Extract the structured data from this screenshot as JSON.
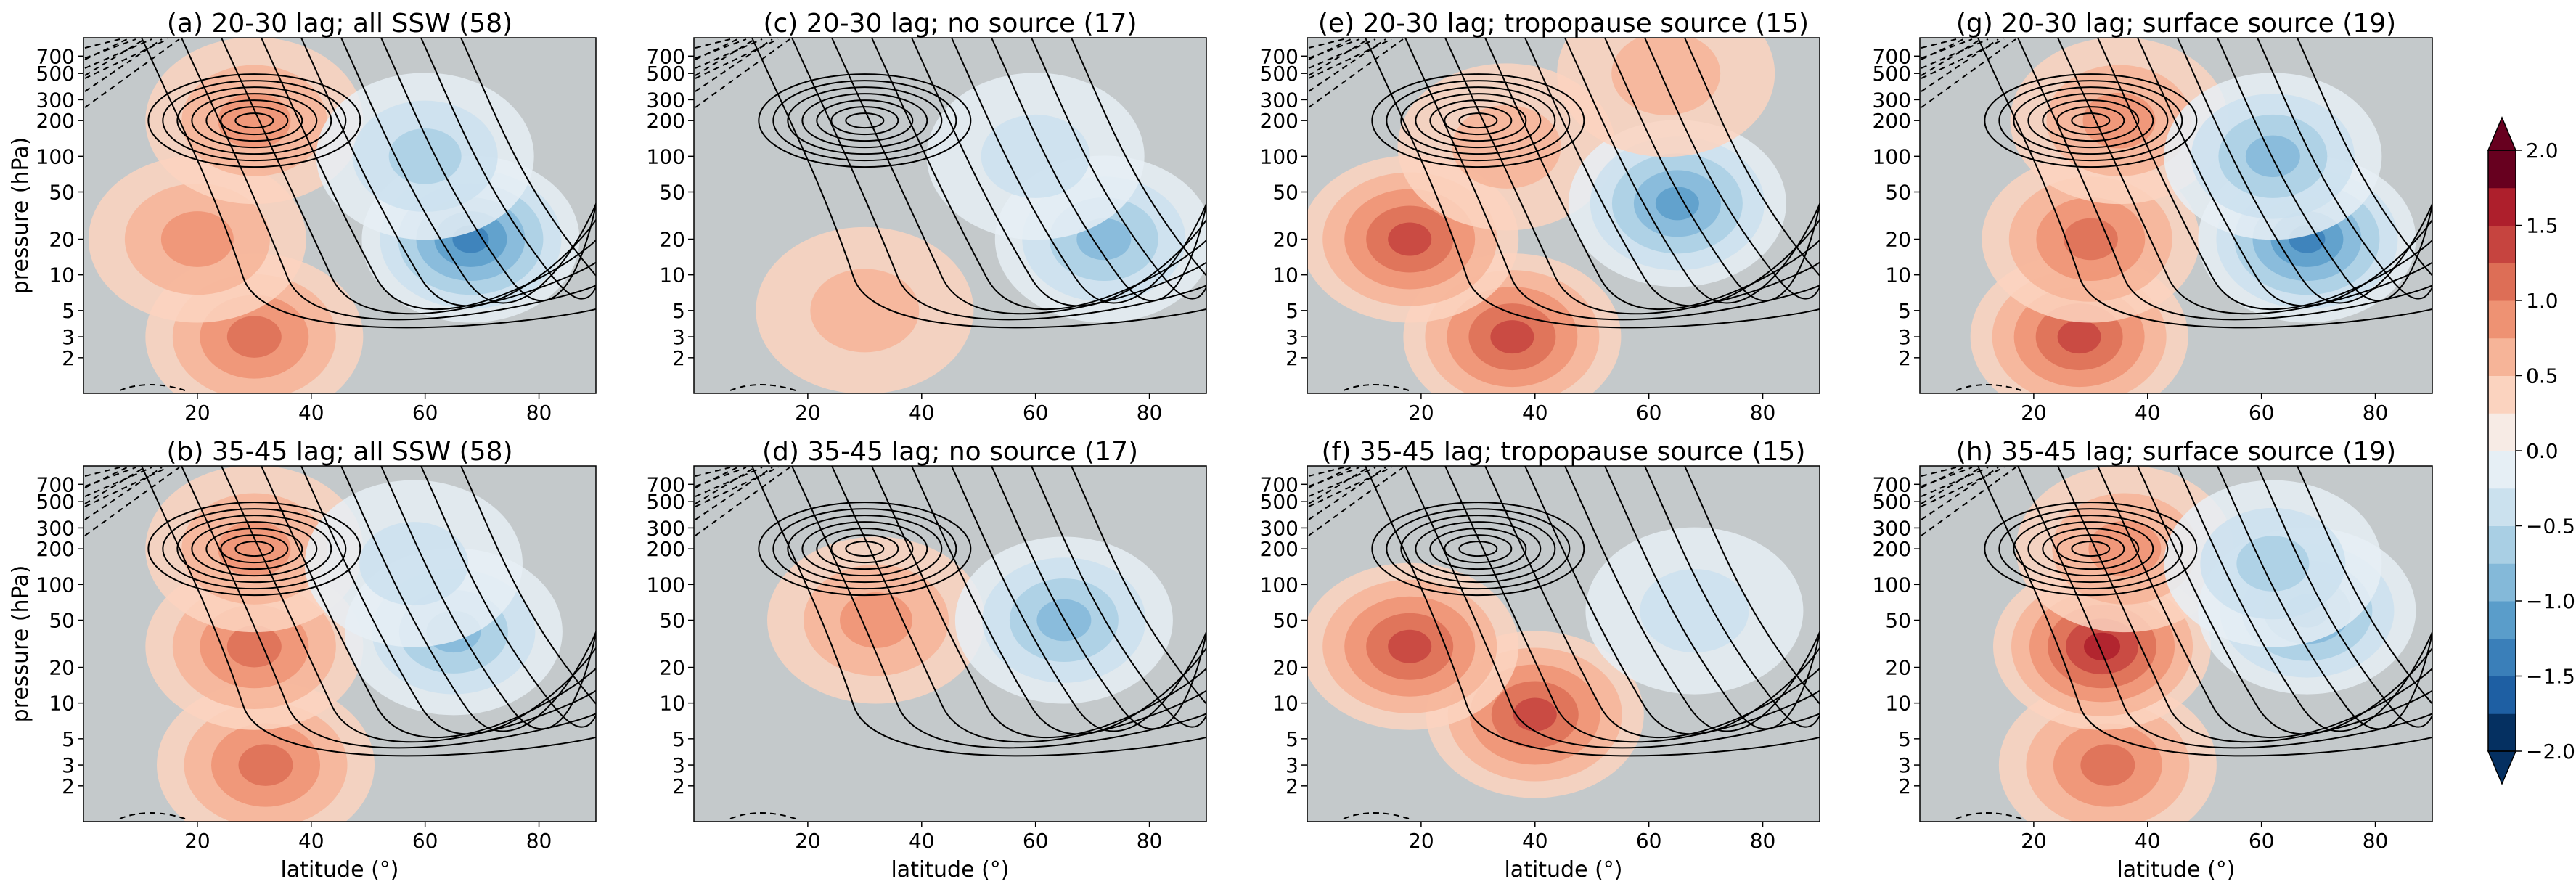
{
  "figure": {
    "ylabel_left": "pressure (hPa)",
    "xlabel_bottom": "latitude (°)"
  },
  "chart_data": [
    {
      "type": "heatmap",
      "id": "a",
      "title": "(a) 20-30 lag; all SSW (58)",
      "xlim": [
        0,
        90
      ],
      "ylim": [
        1000,
        1
      ],
      "xticks": [
        "20",
        "40",
        "60",
        "80"
      ],
      "yticks": [
        "2",
        "3",
        "5",
        "10",
        "20",
        "50",
        "100",
        "200",
        "300",
        "500",
        "700"
      ],
      "xlabel": "",
      "ylabel": "pressure (hPa)",
      "features": [
        {
          "lat": 30,
          "p": 3,
          "value": 1.0
        },
        {
          "lat": 20,
          "p": 20,
          "value": 0.8
        },
        {
          "lat": 30,
          "p": 200,
          "value": 0.7
        },
        {
          "lat": 68,
          "p": 20,
          "value": -1.4
        },
        {
          "lat": 60,
          "p": 100,
          "value": -0.7
        }
      ]
    },
    {
      "type": "heatmap",
      "id": "c",
      "title": "(c) 20-30 lag; no source (17)",
      "xlim": [
        0,
        90
      ],
      "ylim": [
        1000,
        1
      ],
      "xticks": [
        "20",
        "40",
        "60",
        "80"
      ],
      "yticks": [
        "2",
        "3",
        "5",
        "10",
        "20",
        "50",
        "100",
        "200",
        "300",
        "500",
        "700"
      ],
      "xlabel": "",
      "ylabel": "",
      "features": [
        {
          "lat": 30,
          "p": 5,
          "value": 0.4
        },
        {
          "lat": 72,
          "p": 20,
          "value": -1.1
        },
        {
          "lat": 60,
          "p": 100,
          "value": -0.4
        }
      ]
    },
    {
      "type": "heatmap",
      "id": "e",
      "title": "(e) 20-30 lag; tropopause source (15)",
      "xlim": [
        0,
        90
      ],
      "ylim": [
        1000,
        1
      ],
      "xticks": [
        "20",
        "40",
        "60",
        "80"
      ],
      "yticks": [
        "2",
        "3",
        "5",
        "10",
        "20",
        "50",
        "100",
        "200",
        "300",
        "500",
        "700"
      ],
      "xlabel": "",
      "ylabel": "",
      "features": [
        {
          "lat": 36,
          "p": 3,
          "value": 1.2
        },
        {
          "lat": 18,
          "p": 20,
          "value": 1.3
        },
        {
          "lat": 35,
          "p": 120,
          "value": 0.6
        },
        {
          "lat": 65,
          "p": 40,
          "value": -1.2
        },
        {
          "lat": 63,
          "p": 500,
          "value": 0.6
        }
      ]
    },
    {
      "type": "heatmap",
      "id": "g",
      "title": "(g) 20-30 lag; surface source (19)",
      "xlim": [
        0,
        90
      ],
      "ylim": [
        1000,
        1
      ],
      "xticks": [
        "20",
        "40",
        "60",
        "80"
      ],
      "yticks": [
        "2",
        "3",
        "5",
        "10",
        "20",
        "50",
        "100",
        "200",
        "300",
        "500",
        "700"
      ],
      "xlabel": "",
      "ylabel": "",
      "features": [
        {
          "lat": 28,
          "p": 3,
          "value": 1.2
        },
        {
          "lat": 30,
          "p": 20,
          "value": 1.0
        },
        {
          "lat": 35,
          "p": 200,
          "value": 0.8
        },
        {
          "lat": 68,
          "p": 20,
          "value": -1.6
        },
        {
          "lat": 62,
          "p": 100,
          "value": -0.9
        }
      ]
    },
    {
      "type": "heatmap",
      "id": "b",
      "title": "(b) 35-45 lag; all SSW (58)",
      "xlim": [
        0,
        90
      ],
      "ylim": [
        1000,
        1
      ],
      "xticks": [
        "20",
        "40",
        "60",
        "80"
      ],
      "yticks": [
        "2",
        "3",
        "5",
        "10",
        "20",
        "50",
        "100",
        "200",
        "300",
        "500",
        "700"
      ],
      "xlabel": "latitude (°)",
      "ylabel": "pressure (hPa)",
      "features": [
        {
          "lat": 32,
          "p": 3,
          "value": 0.9
        },
        {
          "lat": 30,
          "p": 30,
          "value": 1.0
        },
        {
          "lat": 30,
          "p": 200,
          "value": 0.7
        },
        {
          "lat": 65,
          "p": 40,
          "value": -1.0
        },
        {
          "lat": 58,
          "p": 150,
          "value": -0.6
        }
      ]
    },
    {
      "type": "heatmap",
      "id": "d",
      "title": "(d) 35-45 lag; no source (17)",
      "xlim": [
        0,
        90
      ],
      "ylim": [
        1000,
        1
      ],
      "xticks": [
        "20",
        "40",
        "60",
        "80"
      ],
      "yticks": [
        "2",
        "3",
        "5",
        "10",
        "20",
        "50",
        "100",
        "200",
        "300",
        "500",
        "700"
      ],
      "xlabel": "latitude (°)",
      "ylabel": "",
      "features": [
        {
          "lat": 32,
          "p": 50,
          "value": 0.8
        },
        {
          "lat": 65,
          "p": 50,
          "value": -0.9
        }
      ]
    },
    {
      "type": "heatmap",
      "id": "f",
      "title": "(f) 35-45 lag; tropopause source (15)",
      "xlim": [
        0,
        90
      ],
      "ylim": [
        1000,
        1
      ],
      "xticks": [
        "20",
        "40",
        "60",
        "80"
      ],
      "yticks": [
        "2",
        "3",
        "5",
        "10",
        "20",
        "50",
        "100",
        "200",
        "300",
        "500",
        "700"
      ],
      "xlabel": "latitude (°)",
      "ylabel": "",
      "features": [
        {
          "lat": 40,
          "p": 8,
          "value": 1.3
        },
        {
          "lat": 18,
          "p": 30,
          "value": 1.2
        },
        {
          "lat": 68,
          "p": 60,
          "value": -0.6
        }
      ]
    },
    {
      "type": "heatmap",
      "id": "h",
      "title": "(h) 35-45 lag; surface source (19)",
      "xlim": [
        0,
        90
      ],
      "ylim": [
        1000,
        1
      ],
      "xticks": [
        "20",
        "40",
        "60",
        "80"
      ],
      "yticks": [
        "2",
        "3",
        "5",
        "10",
        "20",
        "50",
        "100",
        "200",
        "300",
        "500",
        "700"
      ],
      "xlabel": "latitude (°)",
      "ylabel": "",
      "features": [
        {
          "lat": 33,
          "p": 3,
          "value": 1.0
        },
        {
          "lat": 32,
          "p": 30,
          "value": 1.4
        },
        {
          "lat": 36,
          "p": 200,
          "value": 0.7
        },
        {
          "lat": 68,
          "p": 60,
          "value": -1.3
        },
        {
          "lat": 62,
          "p": 150,
          "value": -0.8
        }
      ]
    }
  ],
  "colorbar": {
    "vmin": -2.0,
    "vmax": 2.0,
    "extend": "both",
    "levels": 16,
    "ticks": [
      "2.0",
      "1.5",
      "1.0",
      "0.5",
      "0.0",
      "−0.5",
      "−1.0",
      "−1.5",
      "−2.0"
    ],
    "colors": [
      "#053061",
      "#1e5fa3",
      "#3a7fb9",
      "#5a9dca",
      "#84b9d9",
      "#a9cfe4",
      "#cbe1ee",
      "#e6eff5",
      "#f7ebe5",
      "#fbd3bf",
      "#f6b498",
      "#ee9273",
      "#dd6e56",
      "#c6443f",
      "#ae1f2c",
      "#67001f"
    ]
  }
}
